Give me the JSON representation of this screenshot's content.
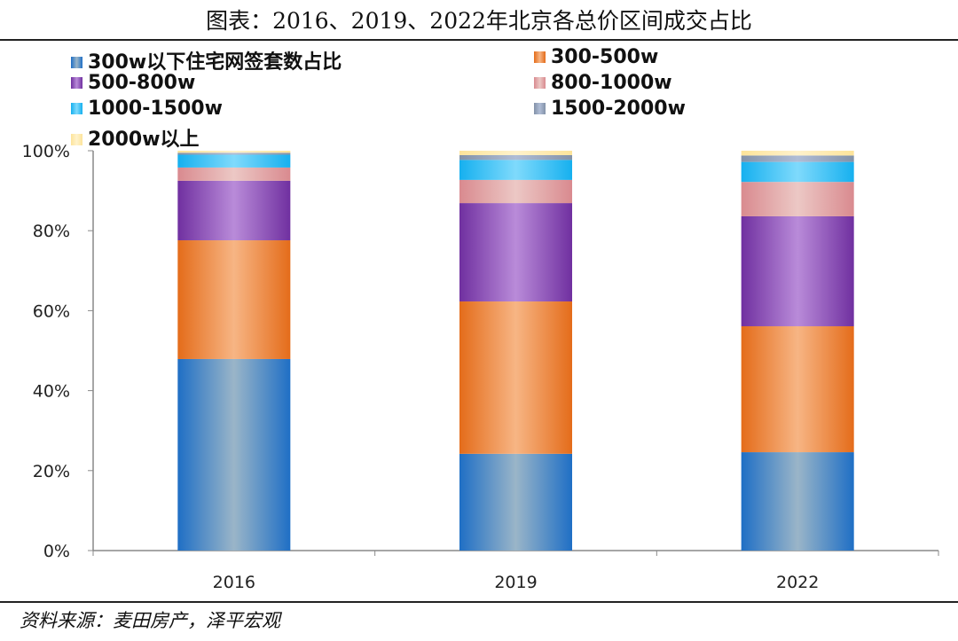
{
  "title": "图表：2016、2019、2022年北京各总价区间成交占比",
  "source": "资料来源：麦田房产，泽平宏观",
  "chart_data": {
    "type": "bar",
    "stacked": true,
    "categories": [
      "2016",
      "2019",
      "2022"
    ],
    "ylim": [
      0,
      100
    ],
    "yticks": [
      "0%",
      "20%",
      "40%",
      "60%",
      "80%",
      "100%"
    ],
    "legend_position": "top",
    "series": [
      {
        "name": "300w以下住宅网签套数占比",
        "values": [
          47.9,
          24.2,
          24.6
        ],
        "color": "#1f6fc5",
        "light": "#9ab5c8"
      },
      {
        "name": "300-500w",
        "values": [
          29.7,
          38.1,
          31.5
        ],
        "color": "#e46c1a",
        "light": "#f7b584"
      },
      {
        "name": "500-800w",
        "values": [
          14.9,
          24.6,
          27.5
        ],
        "color": "#7030a0",
        "light": "#b98bd9"
      },
      {
        "name": "800-1000w",
        "values": [
          3.3,
          5.8,
          8.6
        ],
        "color": "#d98a8f",
        "light": "#ecc8c5"
      },
      {
        "name": "1000-1500w",
        "values": [
          3.2,
          5.0,
          5.0
        ],
        "color": "#16b0ef",
        "light": "#7fdafc"
      },
      {
        "name": "1500-2000w",
        "values": [
          0.5,
          1.2,
          1.6
        ],
        "color": "#8392a8",
        "light": "#b0bdd6"
      },
      {
        "name": "2000w以上",
        "values": [
          0.5,
          1.1,
          1.2
        ],
        "color": "#fde49a",
        "light": "#fff2cc"
      }
    ]
  }
}
